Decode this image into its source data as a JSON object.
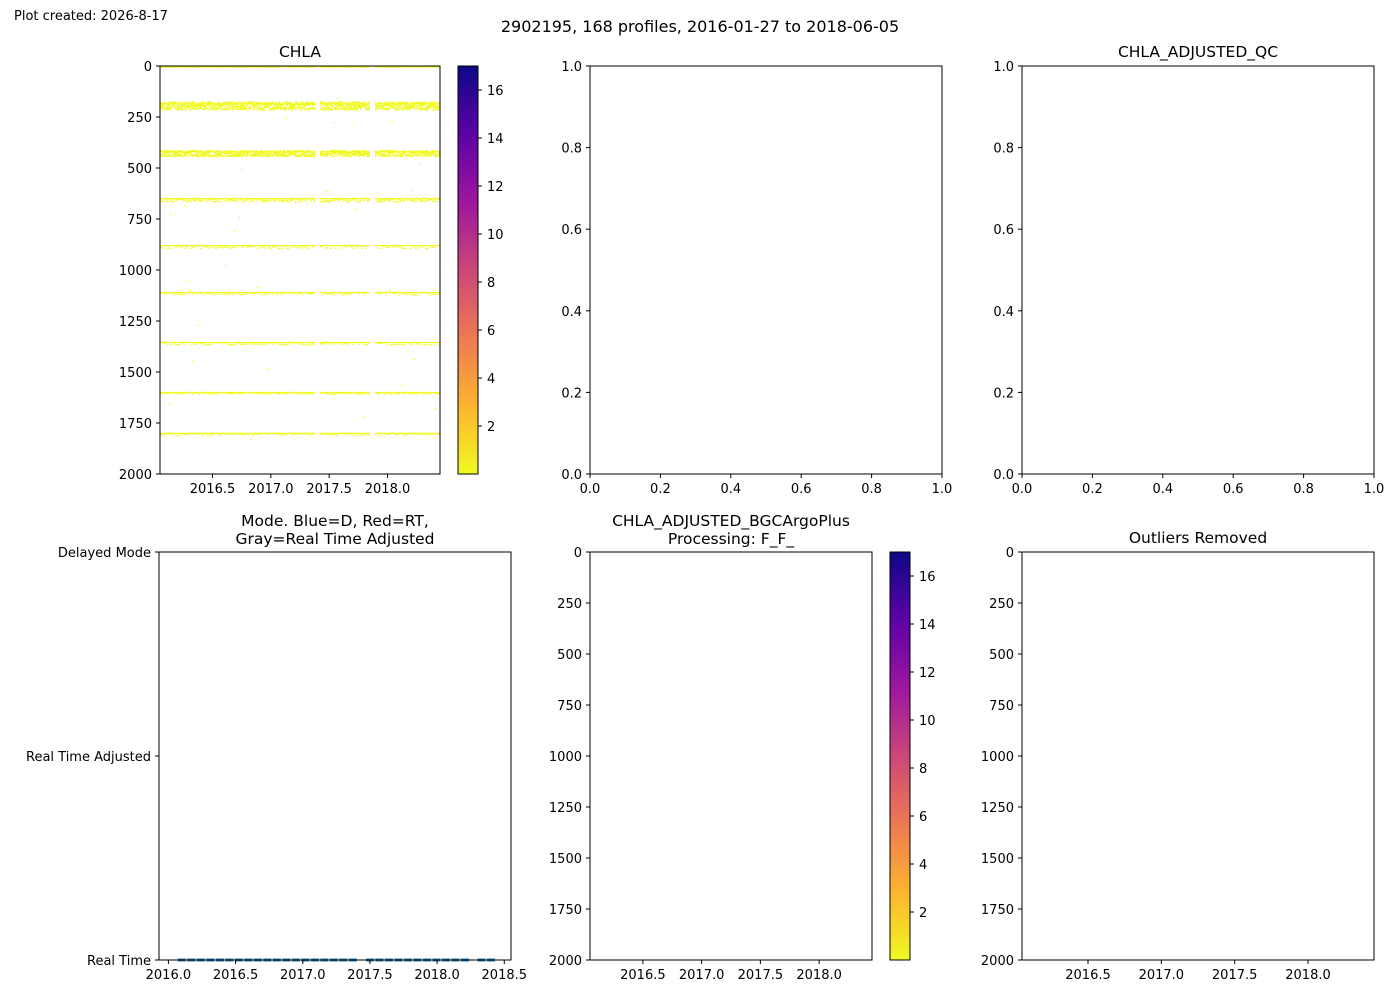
{
  "header": {
    "created": "Plot created: 2026-8-17",
    "suptitle": "2902195, 168 profiles, 2016-01-27 to 2018-06-05"
  },
  "colors": {
    "cmap": [
      "#f0f921",
      "#fdb42f",
      "#ed7953",
      "#cc4778",
      "#9c179e",
      "#5c01a6",
      "#0d0887"
    ],
    "chla_marks": "#f0f921",
    "mode_line": "#1f77b4"
  },
  "chart_data": [
    {
      "id": "chla",
      "type": "heatmap",
      "title": "CHLA",
      "xlim": [
        2016.05,
        2018.45
      ],
      "ylim": [
        2000,
        0
      ],
      "x_ticks": [
        2016.5,
        2017.0,
        2017.5,
        2018.0
      ],
      "x_tick_labels": [
        "2016.5",
        "2017.0",
        "2017.5",
        "2018.0"
      ],
      "y_ticks": [
        0,
        250,
        500,
        750,
        1000,
        1250,
        1500,
        1750,
        2000
      ],
      "y_tick_labels": [
        "0",
        "250",
        "500",
        "750",
        "1000",
        "1250",
        "1500",
        "1750",
        "2000"
      ],
      "colorbar": {
        "cmap": "plasma_r",
        "vmin": 0,
        "vmax": 17,
        "ticks": [
          2,
          4,
          6,
          8,
          10,
          12,
          14,
          16
        ],
        "tick_labels": [
          "2",
          "4",
          "6",
          "8",
          "10",
          "12",
          "14",
          "16"
        ]
      },
      "data_gaps": [
        [
          2017.38,
          2017.42
        ],
        [
          2017.85,
          2017.89
        ]
      ],
      "depth_bands": [
        {
          "depth": 0,
          "spread": 4,
          "density": 0.9
        },
        {
          "depth": 185,
          "spread": 40,
          "density": 0.6
        },
        {
          "depth": 420,
          "spread": 30,
          "density": 0.5
        },
        {
          "depth": 650,
          "spread": 20,
          "density": 0.35
        },
        {
          "depth": 880,
          "spread": 18,
          "density": 0.25
        },
        {
          "depth": 1110,
          "spread": 15,
          "density": 0.18
        },
        {
          "depth": 1355,
          "spread": 15,
          "density": 0.15
        },
        {
          "depth": 1600,
          "spread": 10,
          "density": 0.12
        },
        {
          "depth": 1800,
          "spread": 12,
          "density": 0.15
        }
      ]
    },
    {
      "id": "empty_top_middle",
      "type": "scatter",
      "title": "",
      "xlim": [
        0,
        1
      ],
      "ylim": [
        0,
        1
      ],
      "x_ticks": [
        0,
        0.2,
        0.4,
        0.6,
        0.8,
        1.0
      ],
      "x_tick_labels": [
        "0.0",
        "0.2",
        "0.4",
        "0.6",
        "0.8",
        "1.0"
      ],
      "y_ticks": [
        0,
        0.2,
        0.4,
        0.6,
        0.8,
        1.0
      ],
      "y_tick_labels": [
        "0.0",
        "0.2",
        "0.4",
        "0.6",
        "0.8",
        "1.0"
      ]
    },
    {
      "id": "chla_adjusted_qc",
      "type": "scatter",
      "title": "CHLA_ADJUSTED_QC",
      "xlim": [
        0,
        1
      ],
      "ylim": [
        0,
        1
      ],
      "x_ticks": [
        0,
        0.2,
        0.4,
        0.6,
        0.8,
        1.0
      ],
      "x_tick_labels": [
        "0.0",
        "0.2",
        "0.4",
        "0.6",
        "0.8",
        "1.0"
      ],
      "y_ticks": [
        0,
        0.2,
        0.4,
        0.6,
        0.8,
        1.0
      ],
      "y_tick_labels": [
        "0.0",
        "0.2",
        "0.4",
        "0.6",
        "0.8",
        "1.0"
      ]
    },
    {
      "id": "mode",
      "type": "line",
      "title_lines": [
        "Mode. Blue=D, Red=RT,",
        "Gray=Real Time Adjusted"
      ],
      "xlim": [
        2015.93,
        2018.55
      ],
      "ylim": [
        0,
        2
      ],
      "x_ticks": [
        2016.0,
        2016.5,
        2017.0,
        2017.5,
        2018.0,
        2018.5
      ],
      "x_tick_labels": [
        "2016.0",
        "2016.5",
        "2017.0",
        "2017.5",
        "2018.0",
        "2018.5"
      ],
      "y_ticks": [
        2,
        1,
        0
      ],
      "y_tick_labels": [
        "Delayed Mode",
        "Real Time Adjusted",
        "Real Time"
      ],
      "segments": [
        {
          "x": [
            2016.07,
            2017.41
          ],
          "y": 0
        },
        {
          "x": [
            2017.47,
            2018.25
          ],
          "y": 0
        },
        {
          "x": [
            2018.3,
            2018.43
          ],
          "y": 0
        }
      ]
    },
    {
      "id": "chla_adjusted_bgcargoplus",
      "type": "heatmap",
      "title_lines": [
        "CHLA_ADJUSTED_BGCArgoPlus",
        "Processing: F_F_"
      ],
      "xlim": [
        2016.05,
        2018.45
      ],
      "ylim": [
        2000,
        0
      ],
      "x_ticks": [
        2016.5,
        2017.0,
        2017.5,
        2018.0
      ],
      "x_tick_labels": [
        "2016.5",
        "2017.0",
        "2017.5",
        "2018.0"
      ],
      "y_ticks": [
        0,
        250,
        500,
        750,
        1000,
        1250,
        1500,
        1750,
        2000
      ],
      "y_tick_labels": [
        "0",
        "250",
        "500",
        "750",
        "1000",
        "1250",
        "1500",
        "1750",
        "2000"
      ],
      "colorbar": {
        "cmap": "plasma_r",
        "vmin": 0,
        "vmax": 17,
        "ticks": [
          2,
          4,
          6,
          8,
          10,
          12,
          14,
          16
        ],
        "tick_labels": [
          "2",
          "4",
          "6",
          "8",
          "10",
          "12",
          "14",
          "16"
        ]
      }
    },
    {
      "id": "outliers_removed",
      "type": "heatmap",
      "title": "Outliers Removed",
      "xlim": [
        2016.05,
        2018.45
      ],
      "ylim": [
        2000,
        0
      ],
      "x_ticks": [
        2016.5,
        2017.0,
        2017.5,
        2018.0
      ],
      "x_tick_labels": [
        "2016.5",
        "2017.0",
        "2017.5",
        "2018.0"
      ],
      "y_ticks": [
        0,
        250,
        500,
        750,
        1000,
        1250,
        1500,
        1750,
        2000
      ],
      "y_tick_labels": [
        "0",
        "250",
        "500",
        "750",
        "1000",
        "1250",
        "1500",
        "1750",
        "2000"
      ]
    }
  ]
}
